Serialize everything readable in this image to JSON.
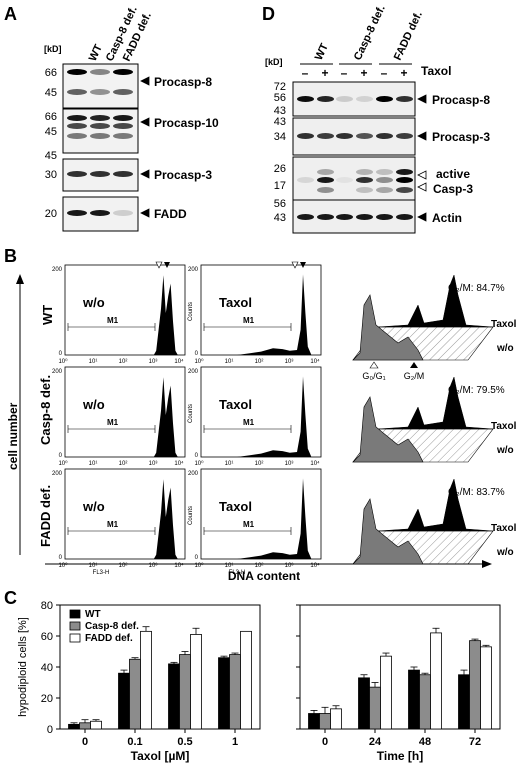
{
  "panel_labels": {
    "a": "A",
    "b": "B",
    "c": "C",
    "d": "D"
  },
  "panel_a": {
    "kd": "[kD]",
    "columns": [
      "WT",
      "Casp-8 def.",
      "FADD def."
    ],
    "blots": [
      {
        "markers": [
          "66",
          "45"
        ],
        "label": "Procasp-8"
      },
      {
        "markers": [
          "66",
          "45"
        ],
        "label": "Procasp-10"
      },
      {
        "markers": [
          "45",
          "30"
        ],
        "label": "Procasp-3"
      },
      {
        "markers": [
          "20"
        ],
        "label": "FADD"
      }
    ]
  },
  "panel_d": {
    "kd": "[kD]",
    "columns": [
      "WT",
      "Casp-8 def.",
      "FADD def."
    ],
    "taxol_label": "Taxol",
    "lane_signs": [
      "–",
      "+",
      "–",
      "+",
      "–",
      "+"
    ],
    "blots": [
      {
        "markers": [
          "72",
          "56",
          "43"
        ],
        "label": "Procasp-8"
      },
      {
        "markers": [
          "43",
          "34"
        ],
        "label": "Procasp-3"
      },
      {
        "markers": [
          "26",
          "17"
        ],
        "label_1": "active",
        "label_2": "Casp-3"
      },
      {
        "markers": [
          "56",
          "43"
        ],
        "label": "Actin"
      }
    ]
  },
  "panel_b": {
    "y_axis": "cell number",
    "x_axis": "DNA content",
    "rows": [
      "WT",
      "Casp-8 def.",
      "FADD def."
    ],
    "col1": "w/o",
    "col2": "Taxol",
    "gate": "M1",
    "ytick_top": "200",
    "ytick_bottom": "0",
    "counts": "Counts",
    "xticks": [
      "10⁰",
      "10¹",
      "10²",
      "10³",
      "10⁴"
    ],
    "channel": "FL3-H",
    "g2m": [
      "G₂/M: 84.7%",
      "G₂/M: 79.5%",
      "G₂/M: 83.7%"
    ],
    "back_label": "Taxol",
    "front_label": "w/o",
    "g0g1": "G₀/G₁",
    "g2m_marker": "G₂/M"
  },
  "chart_data": [
    {
      "type": "bar",
      "ylabel": "hypodiploid cells [%]",
      "xlabel": "Taxol [µM]",
      "categories": [
        "0",
        "0.1",
        "0.5",
        "1"
      ],
      "ylim": [
        0,
        80
      ],
      "yticks": [
        "0",
        "20",
        "40",
        "60",
        "80"
      ],
      "grid": false,
      "legend": "top-left",
      "series": [
        {
          "name": "WT",
          "color": "#000000",
          "values": [
            3,
            36,
            42,
            46
          ],
          "errors": [
            1,
            2,
            1,
            1
          ]
        },
        {
          "name": "Casp-8 def.",
          "color": "#8c8c8c",
          "values": [
            4,
            45,
            48,
            48
          ],
          "errors": [
            2,
            1,
            2,
            1
          ]
        },
        {
          "name": "FADD def.",
          "color": "#ffffff",
          "values": [
            5,
            63,
            61,
            63
          ],
          "errors": [
            1,
            3,
            4,
            0
          ]
        }
      ]
    },
    {
      "type": "bar",
      "xlabel": "Time [h]",
      "categories": [
        "0",
        "24",
        "48",
        "72"
      ],
      "ylim": [
        0,
        80
      ],
      "grid": false,
      "series": [
        {
          "name": "WT",
          "color": "#000000",
          "values": [
            10,
            33,
            38,
            35
          ],
          "errors": [
            2,
            2,
            2,
            3
          ]
        },
        {
          "name": "Casp-8 def.",
          "color": "#8c8c8c",
          "values": [
            10,
            27,
            35,
            57
          ],
          "errors": [
            4,
            3,
            1,
            1
          ]
        },
        {
          "name": "FADD def.",
          "color": "#ffffff",
          "values": [
            13,
            47,
            62,
            53
          ],
          "errors": [
            2,
            2,
            3,
            1
          ]
        }
      ]
    }
  ]
}
